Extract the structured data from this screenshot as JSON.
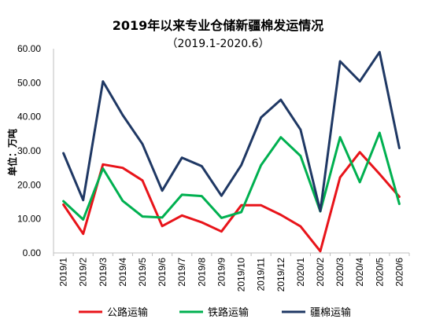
{
  "chart_data": {
    "type": "line",
    "title": "2019年以来专业仓储新疆棉发运情况",
    "subtitle": "（2019.1-2020.6）",
    "ylabel": "单位：万吨",
    "xlabel": "",
    "ylim": [
      0,
      60
    ],
    "yticks": [
      "0.00",
      "10.00",
      "20.00",
      "30.00",
      "40.00",
      "50.00",
      "60.00"
    ],
    "grid": false,
    "legend_position": "bottom",
    "categories": [
      "2019/1",
      "2019/2",
      "2019/3",
      "2019/4",
      "2019/5",
      "2019/6",
      "2019/7",
      "2019/8",
      "2019/9",
      "2019/10",
      "2019/11",
      "2019/12",
      "2020/1",
      "2020/2",
      "2020/3",
      "2020/4",
      "2020/5",
      "2020/6"
    ],
    "series": [
      {
        "name": "公路运输",
        "color": "#e8141a",
        "values": [
          14.2,
          5.6,
          26.0,
          25.0,
          21.3,
          7.9,
          11.0,
          9.0,
          6.3,
          14.0,
          14.0,
          11.2,
          7.8,
          0.5,
          22.2,
          29.6,
          23.2,
          16.5
        ]
      },
      {
        "name": "铁路运输",
        "color": "#00b050",
        "values": [
          15.2,
          9.8,
          24.8,
          15.3,
          10.7,
          10.4,
          17.1,
          16.7,
          10.3,
          12.0,
          25.8,
          34.0,
          28.5,
          12.2,
          34.0,
          20.8,
          35.3,
          14.4
        ]
      },
      {
        "name": "疆棉运输",
        "color": "#1f3864",
        "values": [
          29.3,
          15.5,
          50.4,
          40.5,
          32.0,
          18.3,
          28.0,
          25.5,
          16.8,
          25.8,
          39.8,
          45.0,
          36.2,
          12.3,
          56.3,
          50.4,
          59.0,
          30.8
        ]
      }
    ]
  }
}
